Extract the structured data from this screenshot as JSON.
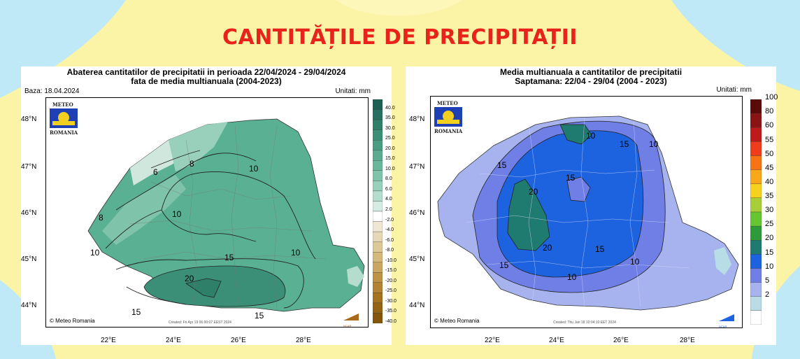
{
  "page_title": "CANTITĂȚILE DE PRECIPITAȚII",
  "left_map": {
    "title_line1": "Abaterea cantitatilor de precipitatii in perioada 22/04/2024 - 29/04/2024",
    "title_line2": "fata de media multianuala (2004-2023)",
    "base_label": "Baza: 18.04.2024",
    "units_label": "Unitati: mm",
    "logo_top": "METEO",
    "logo_bottom": "ROMANIA",
    "copyright": "© Meteo Romania",
    "created": "Created: Fri Apr 19 06:00:07 EEST 2024",
    "ncar": "NCAR",
    "lat_ticks": [
      "48°N",
      "47°N",
      "46°N",
      "45°N",
      "44°N"
    ],
    "lon_ticks": [
      "22°E",
      "24°E",
      "26°E",
      "28°E"
    ],
    "contour_labels": [
      "6",
      "8",
      "8",
      "10",
      "10",
      "10",
      "10",
      "15",
      "15",
      "15",
      "20"
    ],
    "colorbar": {
      "labels": [
        "40.0",
        "35.0",
        "30.0",
        "25.0",
        "20.0",
        "15.0",
        "10.0",
        "8.0",
        "6.0",
        "4.0",
        "2.0",
        "-2.0",
        "-4.0",
        "-6.0",
        "-8.0",
        "-10.0",
        "-15.0",
        "-20.0",
        "-25.0",
        "-30.0",
        "-35.0",
        "-40.0"
      ],
      "colors": [
        "#1d5f50",
        "#25705e",
        "#2f8069",
        "#3b8f76",
        "#4a9d83",
        "#5aab90",
        "#6ab89c",
        "#7fc4aa",
        "#98d0bb",
        "#b4ddcd",
        "#d5ece3",
        "#ffffff",
        "#efe6d3",
        "#e6d8b7",
        "#ddc898",
        "#d5b87b",
        "#cba660",
        "#bf9346",
        "#b38232",
        "#a5721f",
        "#946313",
        "#83560b"
      ]
    }
  },
  "right_map": {
    "title_line1": "Media multianuala a cantitatilor de precipitatii",
    "title_line2": "Saptamana: 22/04 - 29/04 (2004 - 2023)",
    "units_label": "Unitati: mm",
    "logo_top": "METEO",
    "logo_bottom": "ROMANIA",
    "copyright": "© Meteo Romania",
    "created": "Created: Thu Jan 18 10:04:10 EET 2024",
    "ncar": "NCAR",
    "lat_ticks": [
      "48°N",
      "47°N",
      "46°N",
      "45°N",
      "44°N"
    ],
    "lon_ticks": [
      "22°E",
      "24°E",
      "26°E",
      "28°E"
    ],
    "contour_labels": [
      "10",
      "15",
      "10",
      "15",
      "15",
      "20",
      "20",
      "15",
      "15",
      "10",
      "10"
    ],
    "colorbar": {
      "labels": [
        "100",
        "80",
        "60",
        "55",
        "50",
        "45",
        "40",
        "35",
        "30",
        "25",
        "20",
        "15",
        "10",
        "5",
        "2"
      ],
      "colors": [
        "#5b0a0a",
        "#8a1414",
        "#c0191b",
        "#f03c1c",
        "#f77416",
        "#f9a81a",
        "#f6d21e",
        "#a8cf37",
        "#66c531",
        "#2e9a3a",
        "#1f7a6f",
        "#1d63e0",
        "#6f7fe6",
        "#a6b3ee",
        "#b9dde6",
        "#ffffff"
      ]
    }
  },
  "colors": {
    "background": "#fbf4a6",
    "title": "#e8231c"
  }
}
